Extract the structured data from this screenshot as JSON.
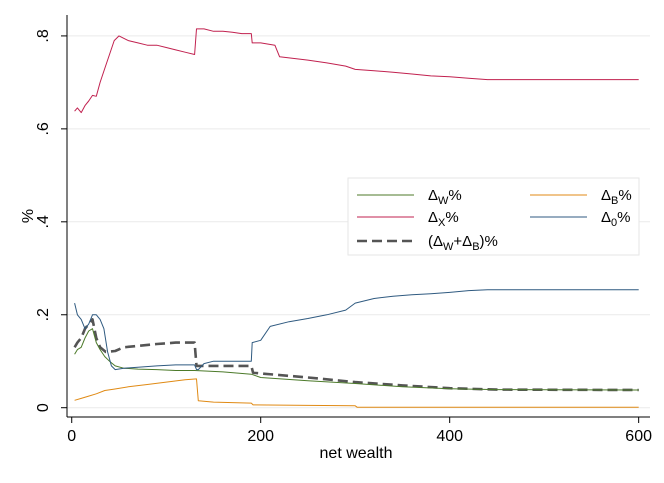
{
  "chart_data": {
    "type": "line",
    "xlabel": "net wealth",
    "ylabel": "%",
    "xlim": [
      -5,
      612
    ],
    "ylim": [
      -0.02,
      0.845
    ],
    "x_ticks": [
      0,
      200,
      400,
      600
    ],
    "x_tick_labels": [
      "0",
      "200",
      "400",
      "600"
    ],
    "y_ticks": [
      0,
      0.2,
      0.4,
      0.6,
      0.8
    ],
    "y_tick_labels": [
      "0",
      ".2",
      ".4",
      ".6",
      ".8"
    ],
    "grid": "horizontal",
    "legend_placement": "right",
    "series": [
      {
        "name": "ΔW%",
        "legend": {
          "base": "Δ",
          "sub": "W",
          "suffix": "%"
        },
        "color": "#4c7a2a",
        "style": "solid",
        "points": [
          [
            3,
            0.115
          ],
          [
            6,
            0.125
          ],
          [
            10,
            0.13
          ],
          [
            14,
            0.15
          ],
          [
            18,
            0.165
          ],
          [
            22,
            0.17
          ],
          [
            26,
            0.14
          ],
          [
            30,
            0.125
          ],
          [
            35,
            0.11
          ],
          [
            40,
            0.1
          ],
          [
            46,
            0.09
          ],
          [
            55,
            0.085
          ],
          [
            70,
            0.083
          ],
          [
            90,
            0.082
          ],
          [
            110,
            0.08
          ],
          [
            130,
            0.08
          ],
          [
            160,
            0.077
          ],
          [
            190,
            0.072
          ],
          [
            200,
            0.065
          ],
          [
            250,
            0.058
          ],
          [
            300,
            0.052
          ],
          [
            350,
            0.045
          ],
          [
            400,
            0.041
          ],
          [
            450,
            0.039
          ],
          [
            600,
            0.038
          ]
        ]
      },
      {
        "name": "ΔX%",
        "legend": {
          "base": "Δ",
          "sub": "X",
          "suffix": "%"
        },
        "color": "#c1214f",
        "style": "solid",
        "points": [
          [
            3,
            0.638
          ],
          [
            6,
            0.645
          ],
          [
            10,
            0.635
          ],
          [
            14,
            0.65
          ],
          [
            18,
            0.66
          ],
          [
            22,
            0.672
          ],
          [
            26,
            0.67
          ],
          [
            30,
            0.7
          ],
          [
            35,
            0.73
          ],
          [
            40,
            0.76
          ],
          [
            45,
            0.79
          ],
          [
            50,
            0.8
          ],
          [
            60,
            0.79
          ],
          [
            70,
            0.785
          ],
          [
            80,
            0.78
          ],
          [
            90,
            0.78
          ],
          [
            100,
            0.775
          ],
          [
            110,
            0.77
          ],
          [
            120,
            0.765
          ],
          [
            130,
            0.76
          ],
          [
            132,
            0.815
          ],
          [
            140,
            0.815
          ],
          [
            150,
            0.81
          ],
          [
            160,
            0.81
          ],
          [
            170,
            0.808
          ],
          [
            180,
            0.805
          ],
          [
            190,
            0.805
          ],
          [
            191,
            0.785
          ],
          [
            200,
            0.785
          ],
          [
            215,
            0.78
          ],
          [
            220,
            0.755
          ],
          [
            250,
            0.748
          ],
          [
            270,
            0.742
          ],
          [
            290,
            0.735
          ],
          [
            300,
            0.728
          ],
          [
            320,
            0.725
          ],
          [
            340,
            0.722
          ],
          [
            360,
            0.718
          ],
          [
            380,
            0.714
          ],
          [
            400,
            0.712
          ],
          [
            420,
            0.709
          ],
          [
            440,
            0.706
          ],
          [
            600,
            0.706
          ]
        ]
      },
      {
        "name": "ΔB%",
        "legend": {
          "base": "Δ",
          "sub": "B",
          "suffix": "%"
        },
        "color": "#e08a14",
        "style": "solid",
        "points": [
          [
            3,
            0.016
          ],
          [
            10,
            0.02
          ],
          [
            18,
            0.025
          ],
          [
            26,
            0.03
          ],
          [
            35,
            0.037
          ],
          [
            45,
            0.04
          ],
          [
            60,
            0.045
          ],
          [
            80,
            0.05
          ],
          [
            100,
            0.055
          ],
          [
            120,
            0.06
          ],
          [
            132,
            0.062
          ],
          [
            134,
            0.015
          ],
          [
            150,
            0.012
          ],
          [
            190,
            0.01
          ],
          [
            192,
            0.006
          ],
          [
            250,
            0.005
          ],
          [
            300,
            0.004
          ],
          [
            302,
            0.001
          ],
          [
            400,
            0.001
          ],
          [
            600,
            0.001
          ]
        ]
      },
      {
        "name": "Δ0%",
        "legend": {
          "base": "Δ",
          "sub": "0",
          "suffix": "%"
        },
        "color": "#2f5a80",
        "style": "solid",
        "points": [
          [
            3,
            0.225
          ],
          [
            6,
            0.2
          ],
          [
            10,
            0.19
          ],
          [
            14,
            0.17
          ],
          [
            18,
            0.18
          ],
          [
            22,
            0.2
          ],
          [
            26,
            0.2
          ],
          [
            30,
            0.19
          ],
          [
            34,
            0.17
          ],
          [
            38,
            0.12
          ],
          [
            42,
            0.09
          ],
          [
            46,
            0.082
          ],
          [
            55,
            0.085
          ],
          [
            70,
            0.087
          ],
          [
            90,
            0.09
          ],
          [
            110,
            0.092
          ],
          [
            130,
            0.092
          ],
          [
            132,
            0.082
          ],
          [
            134,
            0.082
          ],
          [
            140,
            0.095
          ],
          [
            150,
            0.1
          ],
          [
            170,
            0.1
          ],
          [
            190,
            0.1
          ],
          [
            191,
            0.14
          ],
          [
            200,
            0.145
          ],
          [
            210,
            0.175
          ],
          [
            230,
            0.185
          ],
          [
            250,
            0.192
          ],
          [
            270,
            0.2
          ],
          [
            290,
            0.21
          ],
          [
            300,
            0.225
          ],
          [
            320,
            0.235
          ],
          [
            340,
            0.24
          ],
          [
            360,
            0.243
          ],
          [
            380,
            0.245
          ],
          [
            400,
            0.248
          ],
          [
            420,
            0.252
          ],
          [
            440,
            0.254
          ],
          [
            600,
            0.254
          ]
        ]
      },
      {
        "name": "(ΔW+ΔB)%",
        "legend": {
          "base": "(Δ",
          "sub": "W",
          "mid": "+Δ",
          "sub2": "B",
          "suffix": ")%"
        },
        "color": "#555555",
        "style": "dashed",
        "points": [
          [
            3,
            0.13
          ],
          [
            6,
            0.14
          ],
          [
            10,
            0.15
          ],
          [
            14,
            0.17
          ],
          [
            18,
            0.18
          ],
          [
            22,
            0.19
          ],
          [
            26,
            0.15
          ],
          [
            30,
            0.13
          ],
          [
            36,
            0.12
          ],
          [
            46,
            0.122
          ],
          [
            55,
            0.13
          ],
          [
            70,
            0.133
          ],
          [
            90,
            0.137
          ],
          [
            110,
            0.14
          ],
          [
            130,
            0.14
          ],
          [
            132,
            0.09
          ],
          [
            150,
            0.09
          ],
          [
            190,
            0.09
          ],
          [
            192,
            0.075
          ],
          [
            250,
            0.065
          ],
          [
            300,
            0.055
          ],
          [
            350,
            0.048
          ],
          [
            400,
            0.042
          ],
          [
            450,
            0.039
          ],
          [
            600,
            0.038
          ]
        ]
      }
    ]
  }
}
